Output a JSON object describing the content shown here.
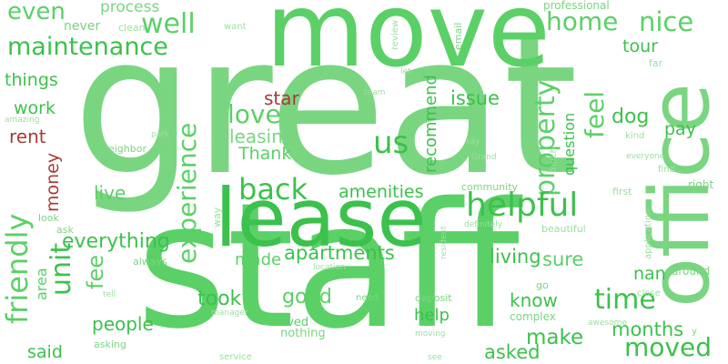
{
  "colors": {
    "green_bright": "#3cc14c",
    "green_mid": "#5bd067",
    "green_light": "#7ad581",
    "green_pale": "#9adf9f",
    "red": "#a83a3a"
  },
  "words": {
    "great": "great",
    "staff": "staff",
    "move": "move",
    "lease": "lease",
    "office": "office",
    "maintenance": "maintenance",
    "even": "even",
    "process": "process",
    "well": "well",
    "home": "home",
    "nice": "nice",
    "property": "property",
    "professional": "professional",
    "things": "things",
    "never": "never",
    "clean": "clean",
    "want": "want",
    "review": "review",
    "email": "email",
    "tour": "tour",
    "far": "far",
    "let": "let",
    "work": "work",
    "friendly": "friendly",
    "rent": "rent",
    "money": "money",
    "amazing": "amazing",
    "neighbor": "neighbor",
    "park": "park",
    "team": "team",
    "star": "star",
    "issue": "issue",
    "recommend": "recommend",
    "question": "question",
    "dog": "dog",
    "feel": "feel",
    "pay": "pay",
    "kind": "kind",
    "love": "love",
    "leasing": "leasing",
    "thank": "Thank",
    "us": "us",
    "experience": "experience",
    "say": "say",
    "much": "much",
    "grand": "Grand",
    "everyone": "everyone",
    "find": "find",
    "back": "back",
    "helpful": "helpful",
    "community": "community",
    "first": "first",
    "right": "right",
    "live": "live",
    "unit": "unit",
    "amenities": "amenities",
    "look": "look",
    "ask": "ask",
    "everything": "everything",
    "way": "way",
    "definitely": "definitely",
    "resident": "resident",
    "beautiful": "beautiful",
    "application": "application",
    "area": "area",
    "fee": "fee",
    "always": "always",
    "apartments": "apartments",
    "location": "location",
    "living": "living",
    "sure": "sure",
    "nan": "nan",
    "around": "around",
    "made": "made",
    "tell": "tell",
    "took": "took",
    "good": "good",
    "know": "know",
    "go": "go",
    "time": "time",
    "close": "close",
    "need": "need",
    "deposit": "deposit",
    "help": "help",
    "people": "people",
    "manager": "manager",
    "complex": "complex",
    "lived": "lived",
    "nothing": "nothing",
    "awesome": "awesome",
    "months": "months",
    "moved": "moved",
    "y": "y",
    "said": "said",
    "asking": "asking",
    "make": "make",
    "moving": "moving",
    "asked": "asked",
    "service": "service",
    "see": "see"
  }
}
